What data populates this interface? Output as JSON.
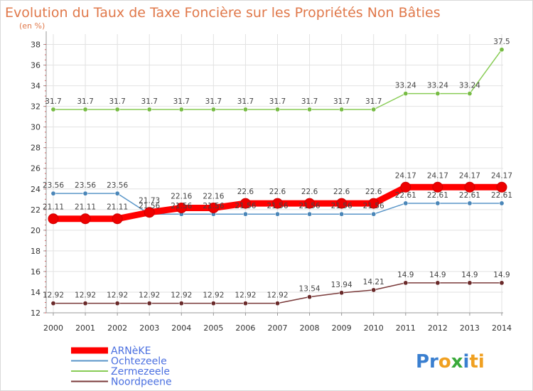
{
  "chart_data": {
    "type": "line",
    "title": "Evolution du Taux de Taxe Foncière sur les Propriétés Non Bâties",
    "subtitle": "(en %)",
    "x": [
      "2000",
      "2001",
      "2002",
      "2003",
      "2004",
      "2005",
      "2006",
      "2007",
      "2008",
      "2009",
      "2010",
      "2011",
      "2012",
      "2013",
      "2014"
    ],
    "ylim": [
      12,
      39
    ],
    "yticks": [
      12,
      14,
      16,
      18,
      20,
      22,
      24,
      26,
      28,
      30,
      32,
      34,
      36,
      38
    ],
    "grid": true,
    "legend_position": "bottom-left",
    "series": [
      {
        "name": "Zermezeele",
        "color": "#88cc55",
        "marker_color": "#77bb44",
        "values": [
          31.7,
          31.7,
          31.7,
          31.7,
          31.7,
          31.7,
          31.7,
          31.7,
          31.7,
          31.7,
          31.7,
          33.24,
          33.24,
          33.24,
          37.5
        ],
        "labels": [
          "31.7",
          "31.7",
          "31.7",
          "31.7",
          "31.7",
          "31.7",
          "31.7",
          "31.7",
          "31.7",
          "31.7",
          "31.7",
          "33.24",
          "33.24",
          "33.24",
          "37.5"
        ]
      },
      {
        "name": "Ochtezeele",
        "color": "#5a96c8",
        "marker_color": "#4a86b8",
        "values": [
          23.56,
          23.56,
          23.56,
          21.56,
          21.56,
          21.56,
          21.56,
          21.56,
          21.56,
          21.56,
          21.56,
          22.61,
          22.61,
          22.61,
          22.61
        ],
        "labels": [
          "23.56",
          "23.56",
          "23.56",
          "21.56",
          "21.56",
          "21.56",
          "21.56",
          "21.56",
          "21.56",
          "21.56",
          "21.56",
          "22.61",
          "22.61",
          "22.61",
          "22.61"
        ]
      },
      {
        "name": "Noordpeene",
        "color": "#7a3a3a",
        "marker_color": "#6a2a2a",
        "values": [
          12.92,
          12.92,
          12.92,
          12.92,
          12.92,
          12.92,
          12.92,
          12.92,
          13.54,
          13.94,
          14.21,
          14.9,
          14.9,
          14.9,
          14.9
        ],
        "labels": [
          "12.92",
          "12.92",
          "12.92",
          "12.92",
          "12.92",
          "12.92",
          "12.92",
          "12.92",
          "13.54",
          "13.94",
          "14.21",
          "14.9",
          "14.9",
          "14.9",
          "14.9"
        ]
      },
      {
        "name": "ARNèKE",
        "color": "#ff0000",
        "marker_color": "#ee0000",
        "thick": true,
        "values": [
          21.11,
          21.11,
          21.11,
          21.73,
          22.16,
          22.16,
          22.6,
          22.6,
          22.6,
          22.6,
          22.6,
          24.17,
          24.17,
          24.17,
          24.17
        ],
        "labels": [
          "21.11",
          "21.11",
          "21.11",
          "21.73",
          "22.16",
          "22.16",
          "22.6",
          "22.6",
          "22.6",
          "22.6",
          "22.6",
          "24.17",
          "24.17",
          "24.17",
          "24.17"
        ]
      }
    ],
    "legend_order": [
      "ARNèKE",
      "Ochtezeele",
      "Zermezeele",
      "Noordpeene"
    ]
  },
  "logo": {
    "text_parts": [
      "Pr",
      "o",
      "x",
      "i",
      "ti"
    ],
    "colors": [
      "#3a7fd0",
      "#f0a020",
      "#3aaa3a",
      "#3a7fd0",
      "#f0a020"
    ]
  }
}
